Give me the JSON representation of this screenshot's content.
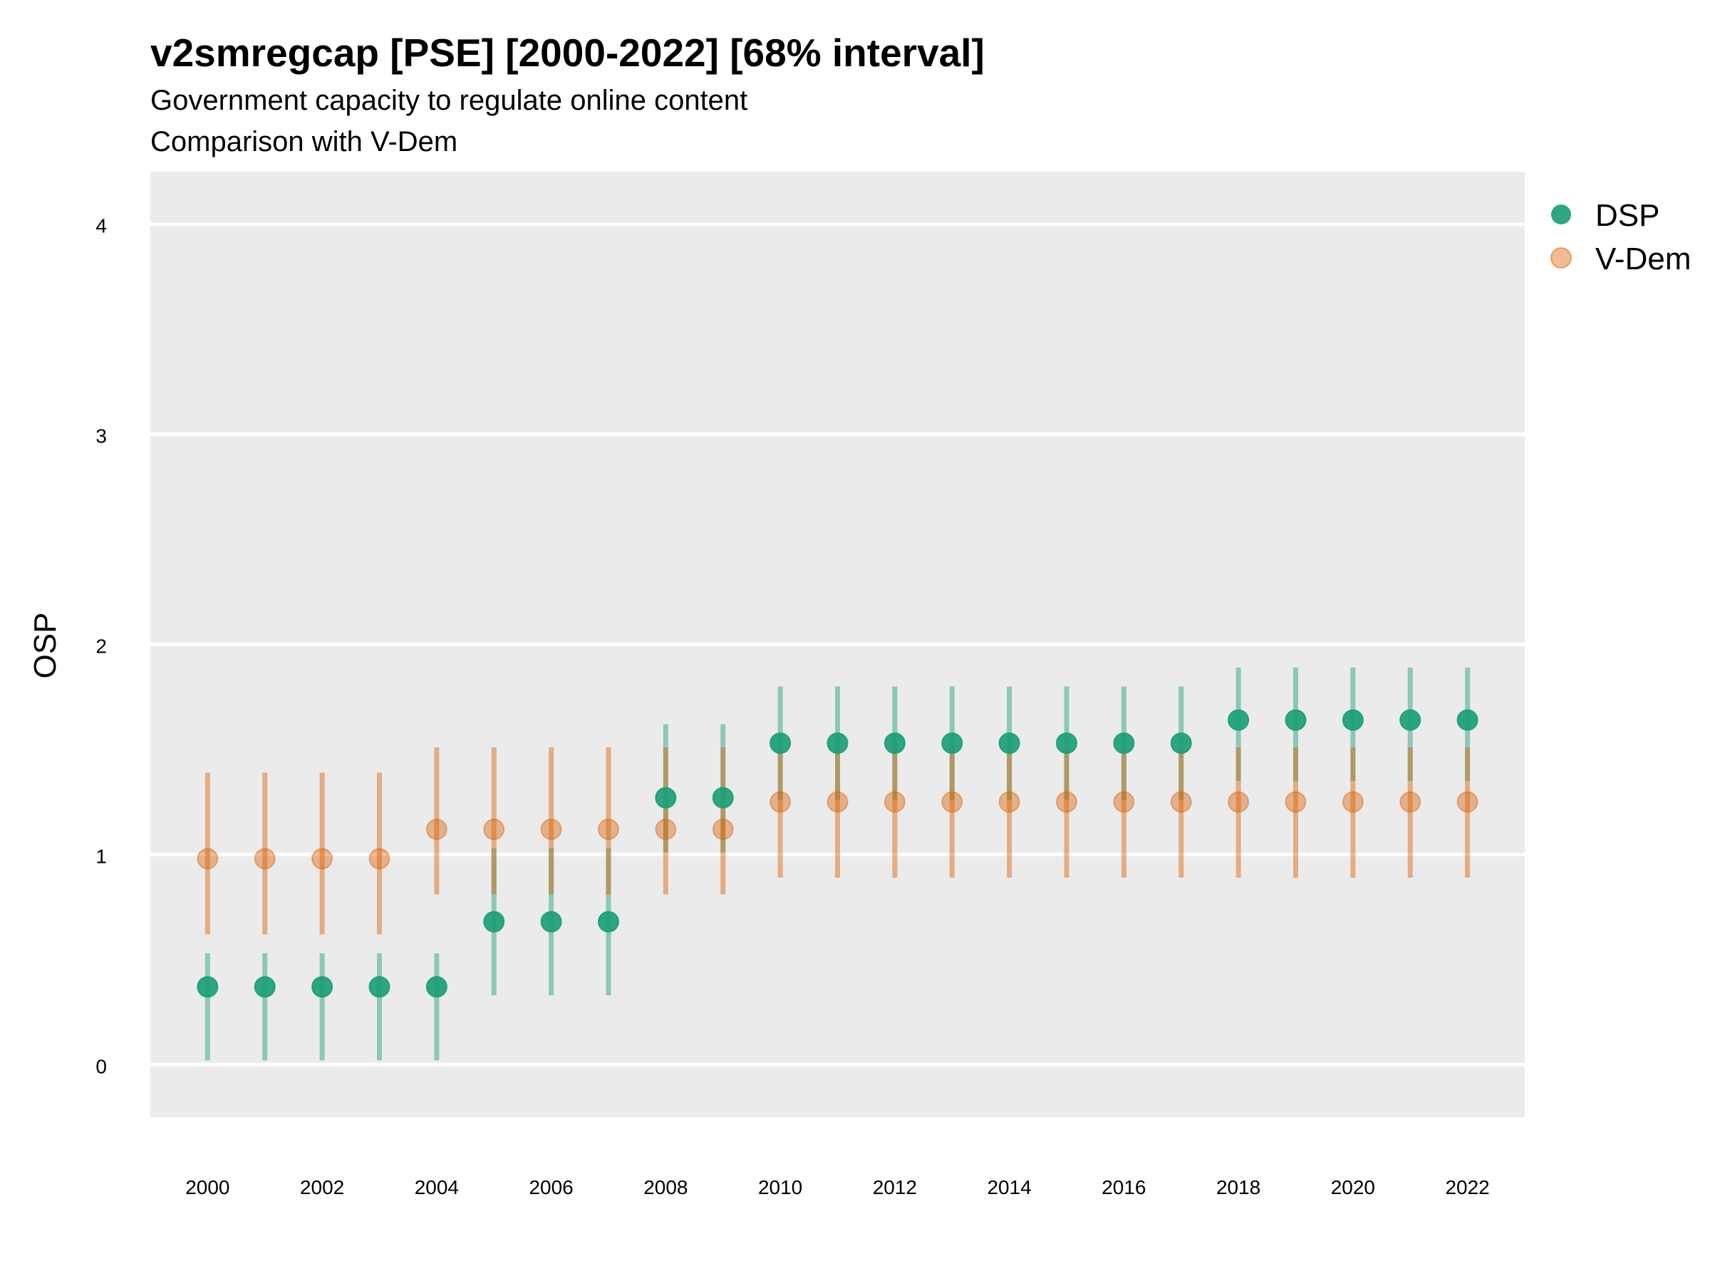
{
  "chart_data": {
    "type": "scatter",
    "title": "v2smregcap [PSE] [2000-2022] [68% interval]",
    "subtitle_line1": "Government capacity to regulate online content",
    "subtitle_line2": "Comparison with V-Dem",
    "xlabel": "",
    "ylabel": "OSP",
    "x": [
      2000,
      2001,
      2002,
      2003,
      2004,
      2005,
      2006,
      2007,
      2008,
      2009,
      2010,
      2011,
      2012,
      2013,
      2014,
      2015,
      2016,
      2017,
      2018,
      2019,
      2020,
      2021,
      2022
    ],
    "x_ticks": [
      "2000",
      "2002",
      "2004",
      "2006",
      "2008",
      "2010",
      "2012",
      "2014",
      "2016",
      "2018",
      "2020",
      "2022"
    ],
    "y_ticks": [
      "0",
      "1",
      "2",
      "3",
      "4"
    ],
    "ylim": [
      -0.25,
      4.25
    ],
    "xlim": [
      1999,
      2023
    ],
    "grid": true,
    "legend_position": "right",
    "series": [
      {
        "name": "DSP",
        "color": "#1b9e77",
        "values": [
          0.37,
          0.37,
          0.37,
          0.37,
          0.37,
          0.68,
          0.68,
          0.68,
          1.27,
          1.27,
          1.53,
          1.53,
          1.53,
          1.53,
          1.53,
          1.53,
          1.53,
          1.53,
          1.64,
          1.64,
          1.64,
          1.64,
          1.64
        ],
        "lower": [
          0.02,
          0.02,
          0.02,
          0.02,
          0.02,
          0.33,
          0.33,
          0.33,
          1.01,
          1.01,
          1.26,
          1.26,
          1.26,
          1.26,
          1.26,
          1.26,
          1.26,
          1.26,
          1.35,
          1.35,
          1.35,
          1.35,
          1.35
        ],
        "upper": [
          0.53,
          0.53,
          0.53,
          0.53,
          0.53,
          1.03,
          1.03,
          1.03,
          1.62,
          1.62,
          1.8,
          1.8,
          1.8,
          1.8,
          1.8,
          1.8,
          1.8,
          1.8,
          1.89,
          1.89,
          1.89,
          1.89,
          1.89
        ]
      },
      {
        "name": "V-Dem",
        "color": "#d95f02",
        "values": [
          0.98,
          0.98,
          0.98,
          0.98,
          1.12,
          1.12,
          1.12,
          1.12,
          1.12,
          1.12,
          1.25,
          1.25,
          1.25,
          1.25,
          1.25,
          1.25,
          1.25,
          1.25,
          1.25,
          1.25,
          1.25,
          1.25,
          1.25
        ],
        "lower": [
          0.62,
          0.62,
          0.62,
          0.62,
          0.81,
          0.81,
          0.81,
          0.81,
          0.81,
          0.81,
          0.89,
          0.89,
          0.89,
          0.89,
          0.89,
          0.89,
          0.89,
          0.89,
          0.89,
          0.89,
          0.89,
          0.89,
          0.89
        ],
        "upper": [
          1.39,
          1.39,
          1.39,
          1.39,
          1.51,
          1.51,
          1.51,
          1.51,
          1.51,
          1.51,
          1.51,
          1.51,
          1.51,
          1.51,
          1.51,
          1.51,
          1.51,
          1.51,
          1.51,
          1.51,
          1.51,
          1.51,
          1.51
        ]
      }
    ]
  }
}
